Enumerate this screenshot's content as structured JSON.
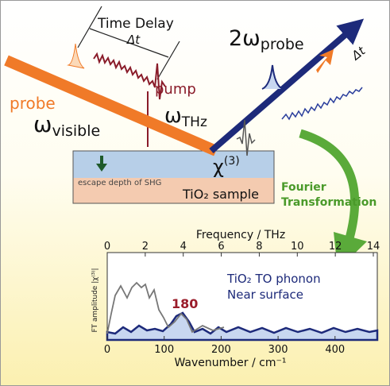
{
  "time_delay": {
    "label": "Time Delay",
    "symbol": "Δt"
  },
  "pump": {
    "label": "pump",
    "symbol": "ω",
    "subscript": "THz"
  },
  "probe": {
    "label": "probe",
    "symbol": "ω",
    "subscript": "visible"
  },
  "signal": {
    "prefix": "2ω",
    "subscript": "probe",
    "delay": "Δt"
  },
  "susceptibility": {
    "symbol": "χ",
    "superscript": "(3)"
  },
  "sample": {
    "label": "TiO₂ sample",
    "depth_label": "escape depth of SHG"
  },
  "transform": {
    "line1": "Fourier",
    "line2": "Transformation"
  },
  "inset": {
    "top_axis_label": "Frequency / THz",
    "top_ticks": [
      0,
      2,
      4,
      6,
      8,
      10,
      12,
      14
    ],
    "bottom_axis_label": "Wavenumber / cm⁻¹",
    "bottom_ticks": [
      0,
      100,
      200,
      300,
      400
    ],
    "y_axis_label": "FT amplitude |χ⁽³⁾|",
    "peak_label": "180",
    "legend_line1": "TiO₂ TO phonon",
    "legend_line2": "Near surface"
  }
}
